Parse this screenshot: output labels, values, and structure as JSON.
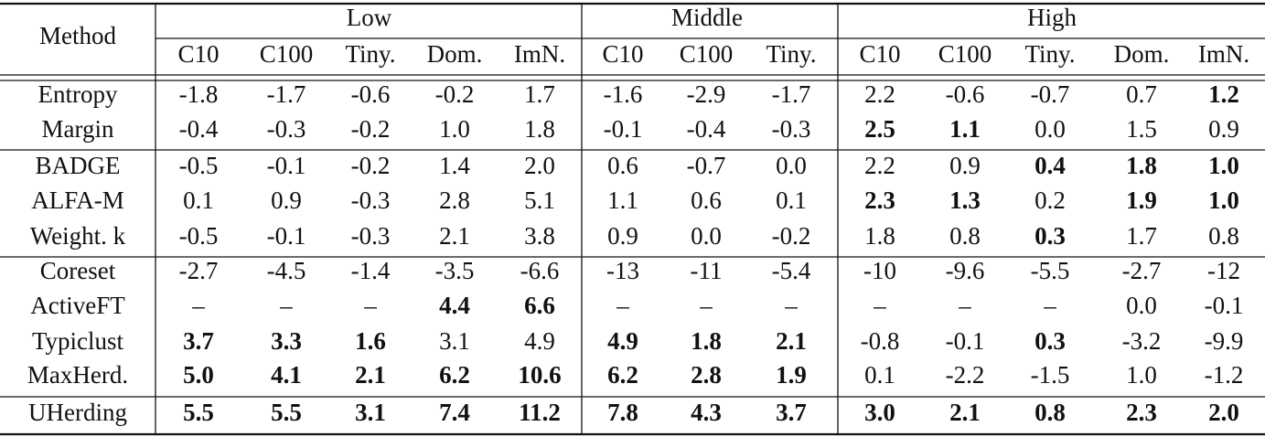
{
  "table": {
    "header": {
      "method": "Method",
      "groups": [
        {
          "label": "Low",
          "columns": [
            "C10",
            "C100",
            "Tiny.",
            "Dom.",
            "ImN."
          ]
        },
        {
          "label": "Middle",
          "columns": [
            "C10",
            "C100",
            "Tiny."
          ]
        },
        {
          "label": "High",
          "columns": [
            "C10",
            "C100",
            "Tiny.",
            "Dom.",
            "ImN."
          ]
        }
      ]
    },
    "rows": [
      {
        "method": "Entropy",
        "cells": [
          "-1.8",
          "-1.7",
          "-0.6",
          "-0.2",
          "1.7",
          "-1.6",
          "-2.9",
          "-1.7",
          "2.2",
          "-0.6",
          "-0.7",
          "0.7",
          {
            "text": "1.2",
            "color": "#6b6bd0"
          }
        ]
      },
      {
        "method": "Margin",
        "cells": [
          "-0.4",
          "-0.3",
          "-0.2",
          "1.0",
          "1.8",
          "-0.1",
          "-0.4",
          "-0.3",
          {
            "text": "2.5",
            "color": "#e0701e"
          },
          {
            "text": "1.1",
            "color": "#6b6bd0"
          },
          "0.0",
          "1.5",
          "0.9"
        ]
      },
      {
        "method": "BADGE",
        "cells": [
          "-0.5",
          "-0.1",
          "-0.2",
          "1.4",
          "2.0",
          "0.6",
          "-0.7",
          "0.0",
          "2.2",
          "0.9",
          {
            "text": "0.4",
            "color": "#e0701e"
          },
          {
            "text": "1.8",
            "color": "#6b6bd0"
          },
          {
            "text": "1.0",
            "color": "#e0701e"
          }
        ]
      },
      {
        "method": "ALFA-M",
        "cells": [
          "0.1",
          "0.9",
          "-0.3",
          "2.8",
          "5.1",
          "1.1",
          "0.6",
          "0.1",
          {
            "text": "2.3",
            "color": "#6b6bd0"
          },
          {
            "text": "1.3",
            "color": "#e0701e"
          },
          "0.2",
          {
            "text": "1.9",
            "color": "#e0701e"
          },
          {
            "text": "1.0",
            "color": "#e0701e"
          }
        ]
      },
      {
        "method": "Weight. k",
        "cells": [
          "-0.5",
          "-0.1",
          "-0.3",
          "2.1",
          "3.8",
          "0.9",
          "0.0",
          "-0.2",
          "1.8",
          "0.8",
          {
            "text": "0.3",
            "color": "#6b6bd0"
          },
          "1.7",
          "0.8"
        ]
      },
      {
        "method": "Coreset",
        "cells": [
          "-2.7",
          "-4.5",
          "-1.4",
          "-3.5",
          "-6.6",
          "-13",
          "-11",
          "-5.4",
          "-10",
          "-9.6",
          "-5.5",
          "-2.7",
          "-12"
        ]
      },
      {
        "method": "ActiveFT",
        "cells": [
          "–",
          "–",
          "–",
          {
            "text": "4.4",
            "color": "#6b6bd0"
          },
          {
            "text": "6.6",
            "color": "#6b6bd0"
          },
          "–",
          "–",
          "–",
          "–",
          "–",
          "–",
          "0.0",
          "-0.1"
        ]
      },
      {
        "method": "Typiclust",
        "cells": [
          {
            "text": "3.7",
            "color": "#6b6bd0"
          },
          {
            "text": "3.3",
            "color": "#6b6bd0"
          },
          {
            "text": "1.6",
            "color": "#6b6bd0"
          },
          "3.1",
          "4.9",
          {
            "text": "4.9",
            "color": "#6b6bd0"
          },
          {
            "text": "1.8",
            "color": "#6b6bd0"
          },
          {
            "text": "2.1",
            "color": "#e0701e"
          },
          "-0.8",
          "-0.1",
          {
            "text": "0.3",
            "color": "#6b6bd0"
          },
          "-3.2",
          "-9.9"
        ]
      },
      {
        "method": "MaxHerd.",
        "cells": [
          {
            "text": "5.0",
            "color": "#e0701e"
          },
          {
            "text": "4.1",
            "color": "#e0701e"
          },
          {
            "text": "2.1",
            "color": "#e0701e"
          },
          {
            "text": "6.2",
            "color": "#e0701e"
          },
          {
            "text": "10.6",
            "color": "#e0701e"
          },
          {
            "text": "6.2",
            "color": "#e0701e"
          },
          {
            "text": "2.8",
            "color": "#e0701e"
          },
          {
            "text": "1.9",
            "color": "#6b6bd0"
          },
          "0.1",
          "-2.2",
          "-1.5",
          "1.0",
          "-1.2"
        ]
      },
      {
        "method": "UHerding",
        "cells": [
          {
            "text": "5.5",
            "color": "#2e9c45"
          },
          {
            "text": "5.5",
            "color": "#2e9c45"
          },
          {
            "text": "3.1",
            "color": "#2e9c45"
          },
          {
            "text": "7.4",
            "color": "#2e9c45"
          },
          {
            "text": "11.2",
            "color": "#2e9c45"
          },
          {
            "text": "7.8",
            "color": "#2e9c45"
          },
          {
            "text": "4.3",
            "color": "#2e9c45"
          },
          {
            "text": "3.7",
            "color": "#2e9c45"
          },
          {
            "text": "3.0",
            "color": "#2e9c45"
          },
          {
            "text": "2.1",
            "color": "#2e9c45"
          },
          {
            "text": "0.8",
            "color": "#2e9c45"
          },
          {
            "text": "2.3",
            "color": "#2e9c45"
          },
          {
            "text": "2.0",
            "color": "#2e9c45"
          }
        ]
      }
    ]
  }
}
